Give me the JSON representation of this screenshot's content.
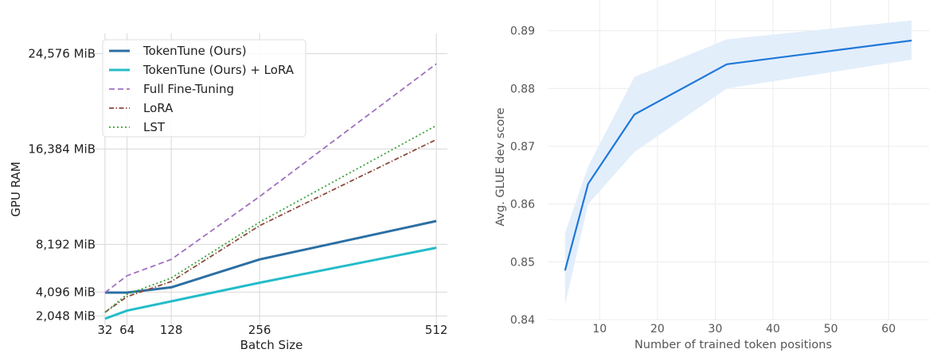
{
  "chart_data": [
    {
      "type": "line",
      "xlabel": "Batch Size",
      "ylabel": "GPU RAM",
      "x_ticks": [
        32,
        64,
        128,
        256,
        512
      ],
      "x_tick_labels": [
        "32",
        "64",
        "128",
        "256",
        "512"
      ],
      "y_ticks": [
        2048,
        4096,
        8192,
        16384,
        24576
      ],
      "y_tick_labels": [
        "2,048 MiB",
        "4,096 MiB",
        "8,192 MiB",
        "16,384 MiB",
        "24,576 MiB"
      ],
      "xlim": [
        16,
        528
      ],
      "ylim": [
        1250,
        27000
      ],
      "grid": true,
      "legend": "top-left",
      "x": [
        32,
        64,
        128,
        256,
        512
      ],
      "series": [
        {
          "name": "TokenTune (Ours)",
          "values": [
            4050,
            4050,
            4500,
            6900,
            10200
          ],
          "color": "#2b6fa3",
          "style": "solid",
          "width": 3
        },
        {
          "name": "TokenTune (Ours) + LoRA",
          "values": [
            1800,
            2500,
            3300,
            4900,
            7900
          ],
          "color": "#24bcc9",
          "style": "solid",
          "width": 3
        },
        {
          "name": "Full Fine-Tuning",
          "values": [
            4050,
            5500,
            6900,
            12300,
            23700
          ],
          "color": "#a070c0",
          "style": "dashed",
          "width": 1.8
        },
        {
          "name": "LoRA",
          "values": [
            2350,
            3700,
            5000,
            9800,
            17200
          ],
          "color": "#8b4a3c",
          "style": "dashdot",
          "width": 1.8
        },
        {
          "name": "LST",
          "values": [
            2350,
            3900,
            5300,
            10100,
            18400
          ],
          "color": "#3aa23a",
          "style": "dotted",
          "width": 1.8
        }
      ]
    },
    {
      "type": "line",
      "xlabel": "Number of trained token positions",
      "ylabel": "Avg. GLUE dev score",
      "x_ticks": [
        10,
        20,
        30,
        40,
        50,
        60
      ],
      "x_tick_labels": [
        "10",
        "20",
        "30",
        "40",
        "50",
        "60"
      ],
      "y_ticks": [
        0.84,
        0.85,
        0.86,
        0.87,
        0.88,
        0.89
      ],
      "y_tick_labels": [
        "0.84",
        "0.85",
        "0.86",
        "0.87",
        "0.88",
        "0.89"
      ],
      "xlim": [
        1,
        67
      ],
      "ylim": [
        0.84,
        0.8905
      ],
      "grid": true,
      "x": [
        4,
        8,
        16,
        32,
        64
      ],
      "series": [
        {
          "values": [
            0.8485,
            0.8635,
            0.8755,
            0.8842,
            0.8883
          ],
          "lower": [
            0.8425,
            0.86,
            0.869,
            0.88,
            0.885
          ],
          "upper": [
            0.855,
            0.8665,
            0.882,
            0.8885,
            0.8918
          ],
          "color": "#1f78d8",
          "band_color": "#e3eefb"
        }
      ]
    }
  ]
}
